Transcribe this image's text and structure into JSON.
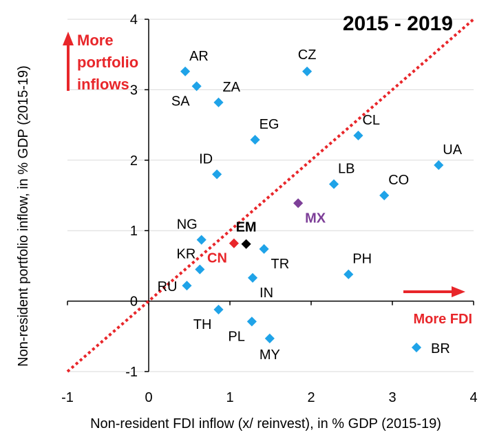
{
  "chart_data": {
    "type": "scatter",
    "title": "2015 - 2019",
    "xlabel": "Non-resident FDI inflow (x/ reinvest), in % GDP (2015-19)",
    "ylabel": "Non-resident portfolio inflow, in % GDP (2015-19)",
    "xlim": [
      -1,
      4
    ],
    "ylim": [
      -1,
      4
    ],
    "xticks": [
      -1,
      0,
      1,
      2,
      3,
      4
    ],
    "yticks": [
      -1,
      0,
      1,
      2,
      3,
      4
    ],
    "grid": "horizontal",
    "reference_line": {
      "type": "diagonal",
      "equation": "y = x",
      "color": "#e8262a",
      "style": "dotted"
    },
    "annotations": {
      "portfolio": {
        "lines": [
          "More",
          "portfolio",
          "inflows"
        ],
        "color": "#e8262a"
      },
      "fdi": {
        "text": "More FDI",
        "color": "#e8262a"
      }
    },
    "legend": {
      "label": "BR",
      "color": "#1fa3e8",
      "placement": "bottom-right"
    },
    "points": [
      {
        "label": "AR",
        "x": 0.45,
        "y": 3.26,
        "color": "#1fa3e8",
        "anchor": "above-right"
      },
      {
        "label": "SA",
        "x": 0.59,
        "y": 3.05,
        "color": "#1fa3e8",
        "anchor": "below-left"
      },
      {
        "label": "ZA",
        "x": 0.86,
        "y": 2.82,
        "color": "#1fa3e8",
        "anchor": "above-right"
      },
      {
        "label": "CZ",
        "x": 1.95,
        "y": 3.26,
        "color": "#1fa3e8",
        "anchor": "above"
      },
      {
        "label": "EG",
        "x": 1.31,
        "y": 2.29,
        "color": "#1fa3e8",
        "anchor": "above-right"
      },
      {
        "label": "CL",
        "x": 2.58,
        "y": 2.35,
        "color": "#1fa3e8",
        "anchor": "above-right"
      },
      {
        "label": "UA",
        "x": 3.57,
        "y": 1.93,
        "color": "#1fa3e8",
        "anchor": "above-right"
      },
      {
        "label": "ID",
        "x": 0.84,
        "y": 1.8,
        "color": "#1fa3e8",
        "anchor": "above-left"
      },
      {
        "label": "LB",
        "x": 2.28,
        "y": 1.66,
        "color": "#1fa3e8",
        "anchor": "above-right"
      },
      {
        "label": "CO",
        "x": 2.9,
        "y": 1.5,
        "color": "#1fa3e8",
        "anchor": "above-right"
      },
      {
        "label": "MX",
        "x": 1.84,
        "y": 1.39,
        "color": "#7d3f98",
        "anchor": "below-right",
        "bold": true
      },
      {
        "label": "EM",
        "x": 1.2,
        "y": 0.81,
        "color": "#000000",
        "anchor": "above",
        "bold": true
      },
      {
        "label": "CN",
        "x": 1.05,
        "y": 0.82,
        "color": "#e8262a",
        "anchor": "below-left",
        "bold": true
      },
      {
        "label": "NG",
        "x": 0.65,
        "y": 0.87,
        "color": "#1fa3e8",
        "anchor": "above-left"
      },
      {
        "label": "TR",
        "x": 1.42,
        "y": 0.74,
        "color": "#1fa3e8",
        "anchor": "below-right"
      },
      {
        "label": "KR",
        "x": 0.63,
        "y": 0.45,
        "color": "#1fa3e8",
        "anchor": "above-left"
      },
      {
        "label": "PH",
        "x": 2.46,
        "y": 0.38,
        "color": "#1fa3e8",
        "anchor": "above-right"
      },
      {
        "label": "RU",
        "x": 0.47,
        "y": 0.22,
        "color": "#1fa3e8",
        "anchor": "left"
      },
      {
        "label": "IN",
        "x": 1.28,
        "y": 0.33,
        "color": "#1fa3e8",
        "anchor": "below-right"
      },
      {
        "label": "TH",
        "x": 0.86,
        "y": -0.12,
        "color": "#1fa3e8",
        "anchor": "below-left"
      },
      {
        "label": "PL",
        "x": 1.27,
        "y": -0.29,
        "color": "#1fa3e8",
        "anchor": "below-left"
      },
      {
        "label": "MY",
        "x": 1.49,
        "y": -0.53,
        "color": "#1fa3e8",
        "anchor": "below"
      }
    ]
  }
}
